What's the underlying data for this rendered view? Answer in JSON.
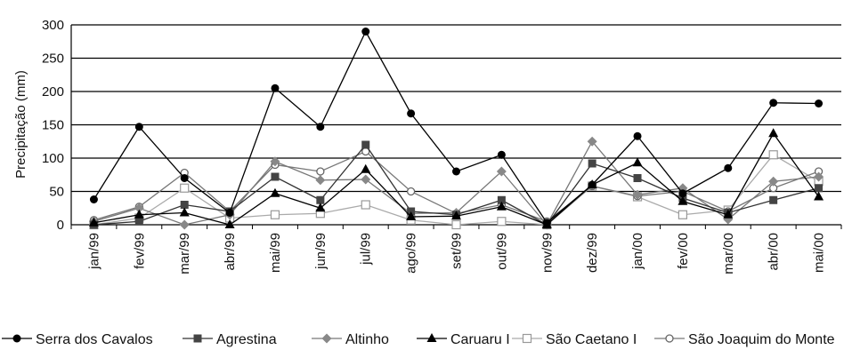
{
  "chart_data": {
    "type": "line",
    "title": "",
    "xlabel": "",
    "ylabel": "Precipitação (mm)",
    "ylim": [
      0,
      300
    ],
    "yticks": [
      0,
      50,
      100,
      150,
      200,
      250,
      300
    ],
    "grid": true,
    "legend_position": "bottom",
    "categories": [
      "jan/99",
      "fev/99",
      "mar/99",
      "abr/99",
      "mai/99",
      "jun/99",
      "jul/99",
      "ago/99",
      "set/99",
      "out/99",
      "nov/99",
      "dez/99",
      "jan/00",
      "fev/00",
      "mar/00",
      "abr/00",
      "mai/00"
    ],
    "series": [
      {
        "name": "Serra dos Cavalos",
        "marker": "circle-filled",
        "values": [
          38,
          147,
          70,
          18,
          205,
          147,
          290,
          167,
          80,
          105,
          3,
          60,
          133,
          47,
          85,
          183,
          182
        ]
      },
      {
        "name": "Agrestina",
        "marker": "square-filled",
        "values": [
          0,
          5,
          30,
          20,
          72,
          37,
          120,
          20,
          15,
          37,
          0,
          92,
          70,
          40,
          18,
          37,
          55
        ]
      },
      {
        "name": "Altinho",
        "marker": "diamond-filled",
        "values": [
          5,
          25,
          0,
          15,
          95,
          67,
          68,
          17,
          18,
          80,
          0,
          125,
          45,
          55,
          8,
          65,
          72
        ]
      },
      {
        "name": "Caruaru I",
        "marker": "triangle-filled",
        "values": [
          3,
          15,
          18,
          0,
          47,
          25,
          83,
          12,
          13,
          27,
          0,
          60,
          93,
          35,
          15,
          137,
          42
        ]
      },
      {
        "name": "São Caetano I",
        "marker": "square-open",
        "values": [
          0,
          10,
          55,
          10,
          15,
          17,
          30,
          7,
          0,
          5,
          0,
          58,
          42,
          15,
          22,
          105,
          65
        ]
      },
      {
        "name": "São Joaquim do Monte",
        "marker": "circle-open",
        "values": [
          7,
          27,
          78,
          20,
          90,
          80,
          110,
          50,
          17,
          30,
          5,
          58,
          43,
          50,
          20,
          55,
          80
        ]
      }
    ]
  }
}
